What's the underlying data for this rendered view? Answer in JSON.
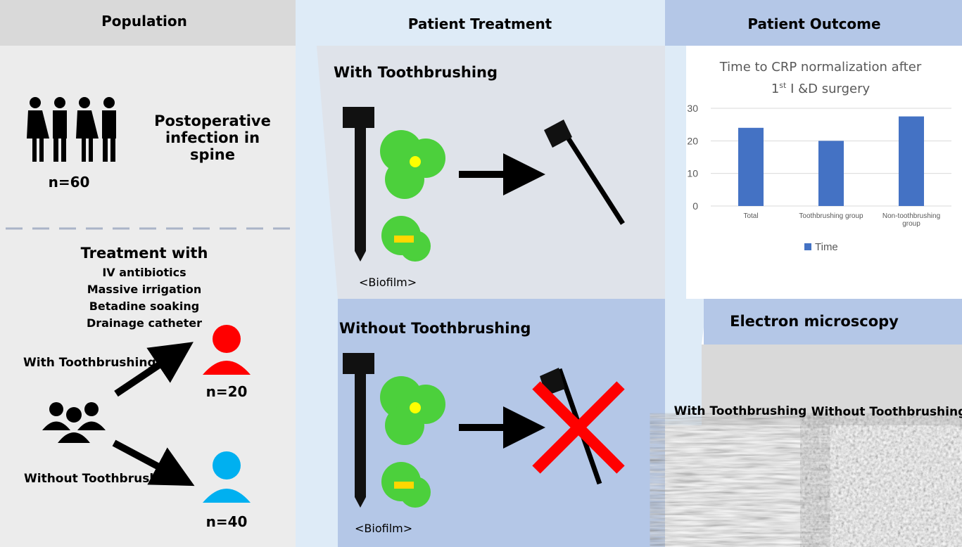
{
  "population": {
    "header": "Population",
    "label": "Postoperative infection in spine",
    "count": "n=60",
    "treatment_title": "Treatment with",
    "treatments": [
      "IV antibiotics",
      "Massive irrigation",
      "Betadine soaking",
      "Drainage catheter"
    ],
    "with_label": "With Toothbrushing",
    "with_count": "n=20",
    "without_label": "Without Toothbrushing",
    "without_count": "n=40"
  },
  "treatment": {
    "header": "Patient Treatment",
    "with_title": "With Toothbrushing",
    "without_title": "Without Toothbrushing",
    "biofilm": "<Biofilm>"
  },
  "outcome": {
    "header": "Patient Outcome",
    "em_title": "Electron microscopy",
    "em_with": "With Toothbrushing",
    "em_without": "Without Toothbrushing"
  },
  "chart_data": {
    "type": "bar",
    "title": {
      "line1": "Time to CRP normalization after",
      "line2_pre": "1",
      "line2_sup": "st",
      "line2_post": " I &D surgery"
    },
    "categories": [
      "Total",
      "Toothbrushing group",
      "Non-toothbrushing group"
    ],
    "series": [
      {
        "name": "Time",
        "color": "#4472c4",
        "values": [
          24,
          20,
          27.5
        ]
      }
    ],
    "ylim": [
      0,
      30
    ],
    "yticks": [
      0,
      10,
      20,
      30
    ],
    "grid": true,
    "legend": "bottom"
  }
}
